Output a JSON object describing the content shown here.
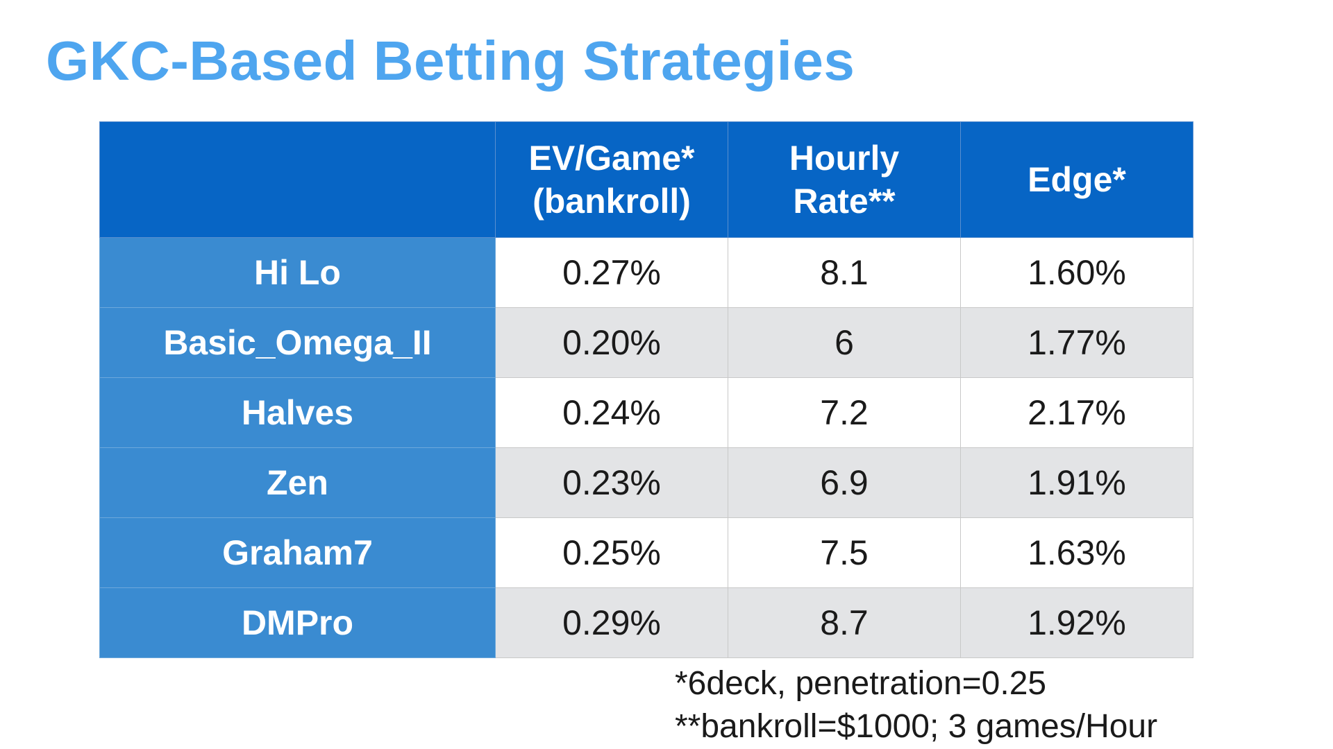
{
  "slide": {
    "title": "GKC-Based Betting Strategies",
    "colors": {
      "title": "#4ea5ef",
      "header_bg": "#0765c5",
      "row_header_bg": "#3a8bd1",
      "row_alt_bg": "#e3e4e6"
    }
  },
  "table": {
    "headers": [
      {
        "lines": [
          ""
        ]
      },
      {
        "lines": [
          "EV/Game*",
          "(bankroll)"
        ]
      },
      {
        "lines": [
          "Hourly",
          "Rate**"
        ]
      },
      {
        "lines": [
          "Edge*"
        ]
      }
    ],
    "rows": [
      {
        "name": "Hi Lo",
        "ev": "0.27%",
        "hourly": "8.1",
        "edge": "1.60%"
      },
      {
        "name": "Basic_Omega_II",
        "ev": "0.20%",
        "hourly": "6",
        "edge": "1.77%"
      },
      {
        "name": "Halves",
        "ev": "0.24%",
        "hourly": "7.2",
        "edge": "2.17%"
      },
      {
        "name": "Zen",
        "ev": "0.23%",
        "hourly": "6.9",
        "edge": "1.91%"
      },
      {
        "name": "Graham7",
        "ev": "0.25%",
        "hourly": "7.5",
        "edge": "1.63%"
      },
      {
        "name": "DMPro",
        "ev": "0.29%",
        "hourly": "8.7",
        "edge": "1.92%"
      }
    ]
  },
  "footnotes": [
    "*6deck, penetration=0.25",
    "**bankroll=$1000; 3 games/Hour"
  ]
}
